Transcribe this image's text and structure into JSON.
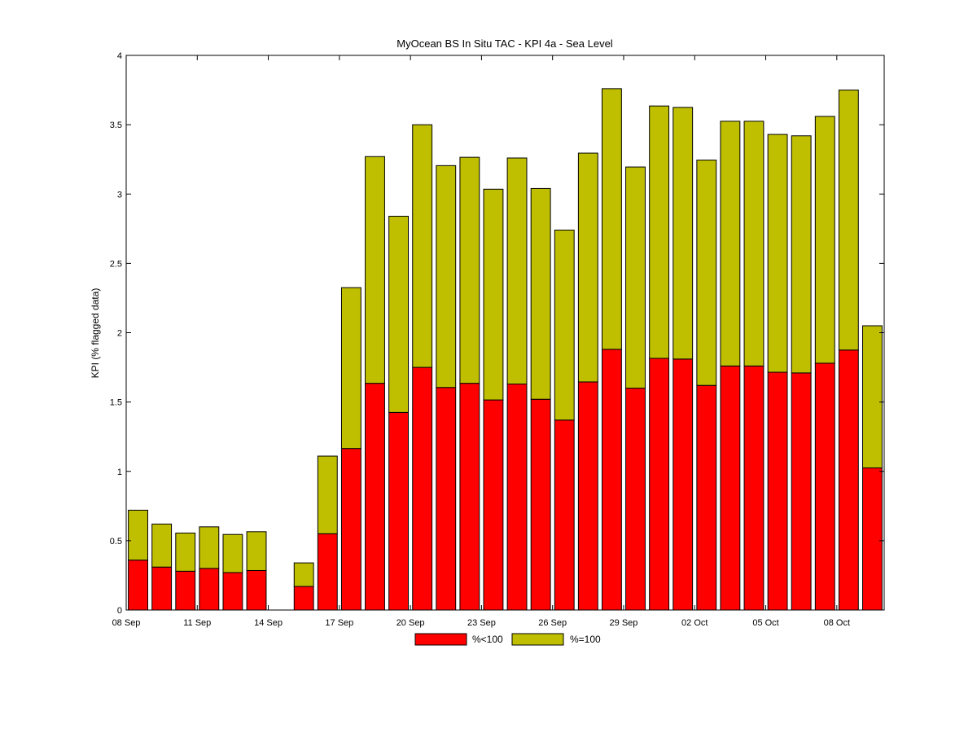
{
  "chart_data": {
    "type": "bar",
    "stacked": true,
    "title": "MyOcean  BS In Situ TAC - KPI 4a - Sea Level",
    "xlabel": "",
    "ylabel": "KPI (% flagged data)",
    "ylim": [
      0,
      4
    ],
    "yticks": [
      "0",
      "0.5",
      "1",
      "1.5",
      "2",
      "2.5",
      "3",
      "3.5",
      "4"
    ],
    "xticks": [
      {
        "label": "08 Sep",
        "index": 0
      },
      {
        "label": "11 Sep",
        "index": 3
      },
      {
        "label": "14 Sep",
        "index": 6
      },
      {
        "label": "17 Sep",
        "index": 9
      },
      {
        "label": "20 Sep",
        "index": 12
      },
      {
        "label": "23 Sep",
        "index": 15
      },
      {
        "label": "26 Sep",
        "index": 18
      },
      {
        "label": "29 Sep",
        "index": 21
      },
      {
        "label": "02 Oct",
        "index": 24
      },
      {
        "label": "05 Oct",
        "index": 27
      },
      {
        "label": "08 Oct",
        "index": 30
      }
    ],
    "categories": [
      "08 Sep",
      "09 Sep",
      "10 Sep",
      "11 Sep",
      "12 Sep",
      "13 Sep",
      "14 Sep",
      "15 Sep",
      "16 Sep",
      "17 Sep",
      "18 Sep",
      "19 Sep",
      "20 Sep",
      "21 Sep",
      "22 Sep",
      "23 Sep",
      "24 Sep",
      "25 Sep",
      "26 Sep",
      "27 Sep",
      "28 Sep",
      "29 Sep",
      "30 Sep",
      "01 Oct",
      "02 Oct",
      "03 Oct",
      "04 Oct",
      "05 Oct",
      "06 Oct",
      "07 Oct",
      "08 Oct",
      "09 Oct"
    ],
    "series": [
      {
        "name": "%<100",
        "color": "#ff0000",
        "values": [
          0.36,
          0.31,
          0.28,
          0.3,
          0.27,
          0.285,
          0,
          0.17,
          0.55,
          1.165,
          1.635,
          1.425,
          1.75,
          1.605,
          1.635,
          1.515,
          1.63,
          1.52,
          1.37,
          1.645,
          1.88,
          1.6,
          1.815,
          1.81,
          1.62,
          1.76,
          1.76,
          1.715,
          1.71,
          1.78,
          1.875,
          1.025
        ]
      },
      {
        "name": "%=100",
        "color": "#bfbf00",
        "values": [
          0.36,
          0.31,
          0.275,
          0.3,
          0.275,
          0.28,
          0,
          0.17,
          0.56,
          1.16,
          1.635,
          1.415,
          1.75,
          1.6,
          1.63,
          1.52,
          1.63,
          1.52,
          1.37,
          1.65,
          1.88,
          1.595,
          1.82,
          1.815,
          1.625,
          1.765,
          1.765,
          1.715,
          1.71,
          1.78,
          1.875,
          1.025
        ]
      }
    ],
    "legend": "bottom-center",
    "grid": false
  }
}
